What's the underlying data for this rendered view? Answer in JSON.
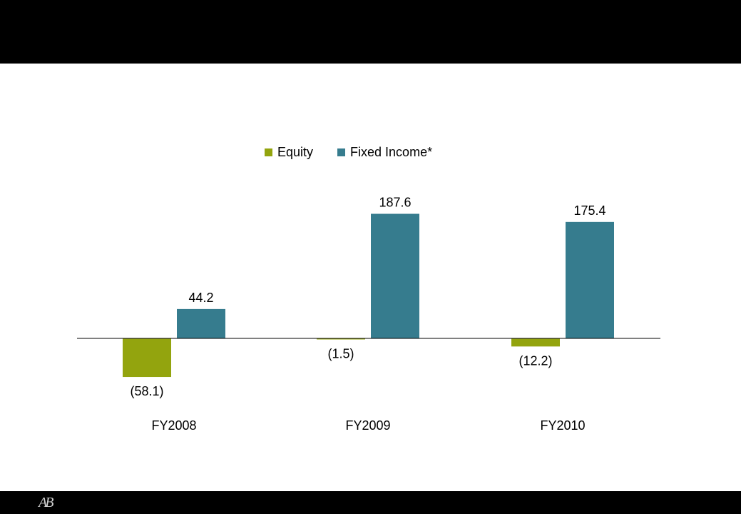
{
  "footer": {
    "logo_text": "AB"
  },
  "colors": {
    "equity": "#93a40e",
    "fixed_income": "#367c8e",
    "bar_top": "#000000"
  },
  "chart_data": {
    "type": "bar",
    "categories": [
      "FY2008",
      "FY2009",
      "FY2010"
    ],
    "series": [
      {
        "name": "Equity",
        "values": [
          -58.1,
          -1.5,
          -12.2
        ],
        "labels": [
          "(58.1)",
          "(1.5)",
          "(12.2)"
        ]
      },
      {
        "name": "Fixed Income*",
        "values": [
          44.2,
          187.6,
          175.4
        ],
        "labels": [
          "44.2",
          "187.6",
          "175.4"
        ]
      }
    ],
    "legend": "top-center",
    "grid": false
  }
}
